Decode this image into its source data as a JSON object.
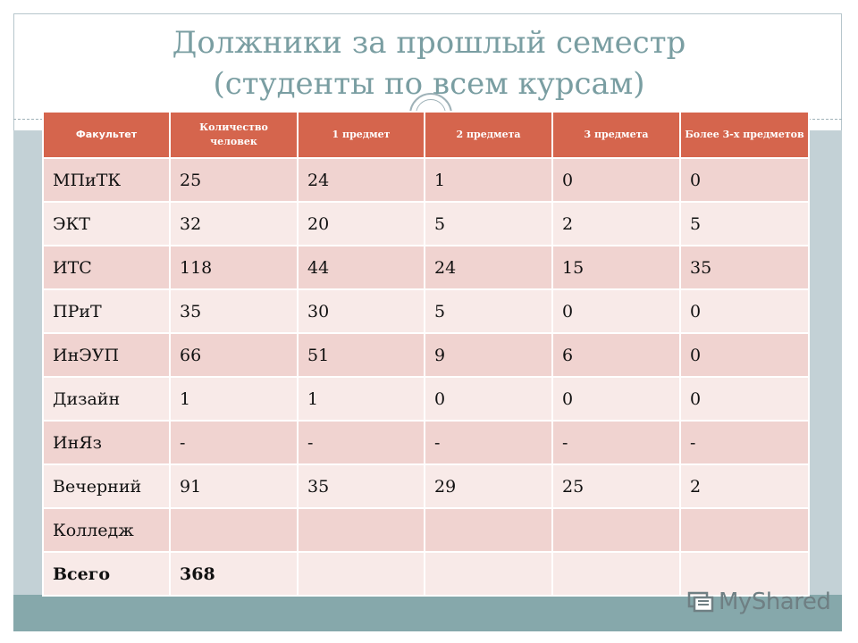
{
  "slide": {
    "title_line1": "Должники за прошлый семестр",
    "title_line2": "(студенты по всем курсам)"
  },
  "table": {
    "headers": [
      "Факультет",
      "Количество человек",
      "1 предмет",
      "2 предмета",
      "3 предмета",
      "Более 3-х предметов"
    ],
    "rows": [
      [
        "МПиТК",
        "25",
        "24",
        "1",
        "0",
        "0"
      ],
      [
        "ЭКТ",
        "32",
        "20",
        "5",
        "2",
        "5"
      ],
      [
        "ИТС",
        "118",
        "44",
        "24",
        "15",
        "35"
      ],
      [
        "ПРиТ",
        "35",
        "30",
        "5",
        "0",
        "0"
      ],
      [
        "ИнЭУП",
        "66",
        "51",
        "9",
        "6",
        "0"
      ],
      [
        "Дизайн",
        "1",
        "1",
        "0",
        "0",
        "0"
      ],
      [
        "ИнЯз",
        "-",
        "-",
        "-",
        "-",
        "-"
      ],
      [
        "Вечерний",
        "91",
        "35",
        "29",
        "25",
        "2"
      ],
      [
        "Колледж",
        "",
        "",
        "",
        "",
        ""
      ],
      [
        "Всего",
        "368",
        "",
        "",
        "",
        ""
      ]
    ]
  },
  "logo": {
    "text": "MyShared",
    "icon": "slides-icon"
  },
  "colors": {
    "header": "#d5654d",
    "row_odd": "#f0d3d0",
    "row_even": "#f8eae8",
    "title": "#7a9ea2",
    "band": "#86a8ab"
  }
}
